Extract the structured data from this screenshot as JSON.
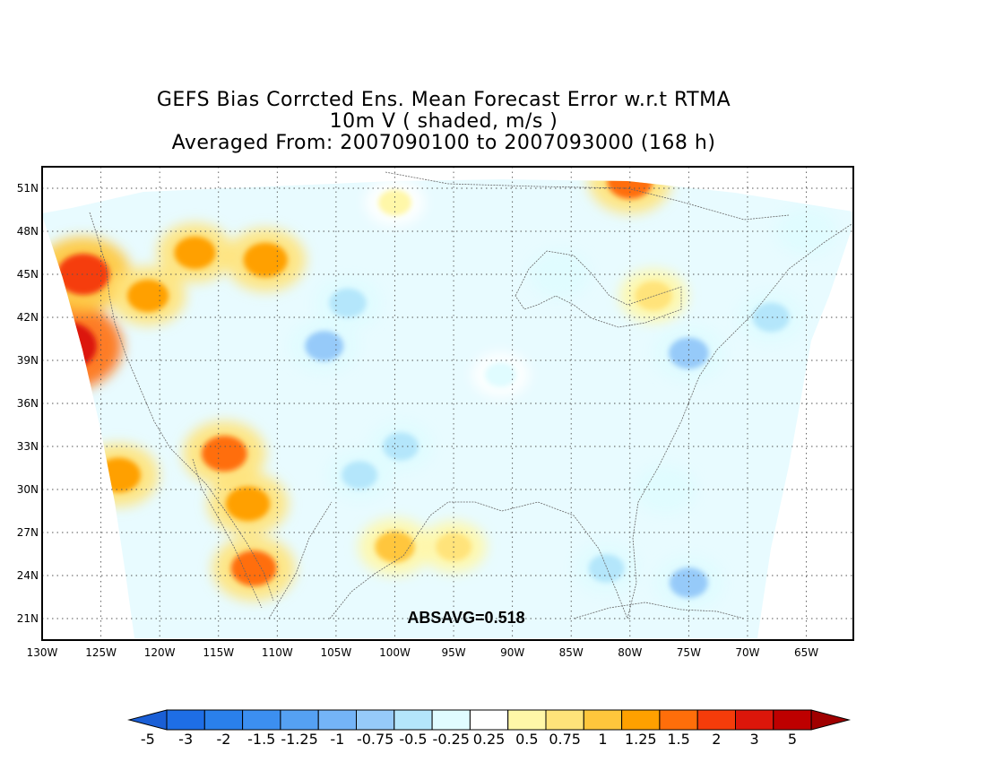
{
  "title": {
    "line1": "GEFS Bias Corrcted Ens. Mean Forecast Error w.r.t RTMA",
    "line2": "10m V ( shaded, m/s )",
    "line3": "Averaged From: 2007090100 to 2007093000 (168 h)"
  },
  "map": {
    "lon_range": [
      -130,
      -61
    ],
    "lat_range": [
      19.5,
      52.5
    ],
    "lat_ticks": [
      {
        "value": 51,
        "label": "51N"
      },
      {
        "value": 48,
        "label": "48N"
      },
      {
        "value": 45,
        "label": "45N"
      },
      {
        "value": 42,
        "label": "42N"
      },
      {
        "value": 39,
        "label": "39N"
      },
      {
        "value": 36,
        "label": "36N"
      },
      {
        "value": 33,
        "label": "33N"
      },
      {
        "value": 30,
        "label": "30N"
      },
      {
        "value": 27,
        "label": "27N"
      },
      {
        "value": 24,
        "label": "24N"
      },
      {
        "value": 21,
        "label": "21N"
      }
    ],
    "lon_ticks": [
      {
        "value": -130,
        "label": "130W"
      },
      {
        "value": -125,
        "label": "125W"
      },
      {
        "value": -120,
        "label": "120W"
      },
      {
        "value": -115,
        "label": "115W"
      },
      {
        "value": -110,
        "label": "110W"
      },
      {
        "value": -105,
        "label": "105W"
      },
      {
        "value": -100,
        "label": "100W"
      },
      {
        "value": -95,
        "label": "95W"
      },
      {
        "value": -90,
        "label": "90W"
      },
      {
        "value": -85,
        "label": "85W"
      },
      {
        "value": -80,
        "label": "80W"
      },
      {
        "value": -75,
        "label": "75W"
      },
      {
        "value": -70,
        "label": "70W"
      },
      {
        "value": -65,
        "label": "65W"
      }
    ],
    "grid": true,
    "annotation": "ABSAVG=0.518"
  },
  "colorbar": {
    "labels": [
      "-5",
      "-3",
      "-2",
      "-1.5",
      "-1.25",
      "-1",
      "-0.75",
      "-0.5",
      "-0.25",
      "0.25",
      "0.5",
      "0.75",
      "1",
      "1.25",
      "1.5",
      "2",
      "3",
      "5"
    ],
    "colors": [
      "#1e6ee6",
      "#2a80eb",
      "#3c8ff0",
      "#55a1f3",
      "#74b4f7",
      "#96caf9",
      "#b4e6fb",
      "#e0fcff",
      "#ffffff",
      "#fff7a8",
      "#ffe37a",
      "#ffc63c",
      "#ffa000",
      "#ff6e0a",
      "#f53c0a",
      "#dc160a",
      "#be0000"
    ],
    "low_color": "#1a5fd6",
    "high_color": "#a00000"
  },
  "chart_data": {
    "type": "heatmap",
    "title": "GEFS Bias Corrcted Ens. Mean Forecast Error w.r.t RTMA",
    "variable": "10m V ( shaded, m/s )",
    "period": "Averaged From: 2007090100 to 2007093000 (168 h)",
    "x_range": [
      -130,
      -61
    ],
    "y_range": [
      19.5,
      52.5
    ],
    "levels": [
      -5,
      -3,
      -2,
      -1.5,
      -1.25,
      -1,
      -0.75,
      -0.5,
      -0.25,
      0.25,
      0.5,
      0.75,
      1,
      1.25,
      1.5,
      2,
      3,
      5
    ],
    "absavg": 0.518,
    "anomalies": [
      {
        "lon": -128.0,
        "lat": 40.0,
        "value": 2.5
      },
      {
        "lon": -126.5,
        "lat": 45.0,
        "value": 1.8
      },
      {
        "lon": -123.5,
        "lat": 31.0,
        "value": 1.2
      },
      {
        "lon": -121.0,
        "lat": 43.5,
        "value": 1.0
      },
      {
        "lon": -117.0,
        "lat": 46.5,
        "value": 1.0
      },
      {
        "lon": -111.0,
        "lat": 46.0,
        "value": 1.2
      },
      {
        "lon": -114.5,
        "lat": 32.5,
        "value": 1.3
      },
      {
        "lon": -112.5,
        "lat": 29.0,
        "value": 1.2
      },
      {
        "lon": -112.0,
        "lat": 24.5,
        "value": 1.3
      },
      {
        "lon": -100.0,
        "lat": 26.0,
        "value": 0.9
      },
      {
        "lon": -95.0,
        "lat": 26.0,
        "value": 0.6
      },
      {
        "lon": -80.0,
        "lat": 51.5,
        "value": 1.3
      },
      {
        "lon": -78.0,
        "lat": 43.5,
        "value": 0.7
      },
      {
        "lon": -100.0,
        "lat": 50.0,
        "value": 0.4
      },
      {
        "lon": -106.0,
        "lat": 40.0,
        "value": -0.8
      },
      {
        "lon": -104.0,
        "lat": 43.0,
        "value": -0.7
      },
      {
        "lon": -103.0,
        "lat": 31.0,
        "value": -0.6
      },
      {
        "lon": -99.5,
        "lat": 33.0,
        "value": -0.6
      },
      {
        "lon": -75.0,
        "lat": 39.5,
        "value": -0.9
      },
      {
        "lon": -68.0,
        "lat": 42.0,
        "value": -0.7
      },
      {
        "lon": -77.0,
        "lat": 30.0,
        "value": -0.5
      },
      {
        "lon": -82.0,
        "lat": 24.5,
        "value": -0.6
      },
      {
        "lon": -75.0,
        "lat": 23.5,
        "value": -0.8
      },
      {
        "lon": -86.0,
        "lat": 45.0,
        "value": -0.5
      },
      {
        "lon": -65.0,
        "lat": 48.0,
        "value": -0.5
      },
      {
        "lon": -91.0,
        "lat": 38.0,
        "value": -0.3
      }
    ]
  }
}
